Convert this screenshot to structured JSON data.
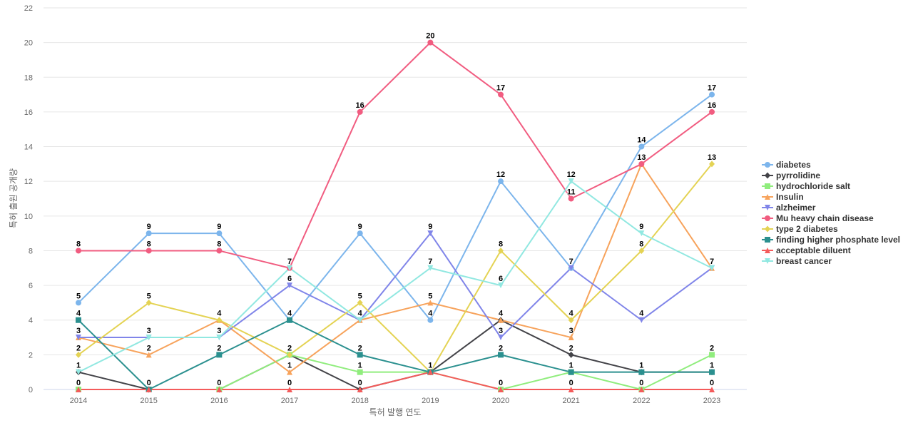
{
  "chart_data": {
    "type": "line",
    "title": "",
    "xlabel": "특허 발행 연도",
    "ylabel": "특허 출원 공개량",
    "x": [
      "2014",
      "2015",
      "2016",
      "2017",
      "2018",
      "2019",
      "2020",
      "2021",
      "2022",
      "2023"
    ],
    "ylim": [
      0,
      22
    ],
    "yticks": [
      0,
      2,
      4,
      6,
      8,
      10,
      12,
      14,
      16,
      18,
      20,
      22
    ],
    "grid": true,
    "legend_position": "right",
    "series": [
      {
        "name": "diabetes",
        "color": "#7cb5ec",
        "marker": "circle",
        "values": [
          5,
          9,
          9,
          4,
          9,
          4,
          12,
          7,
          14,
          17
        ]
      },
      {
        "name": "pyrrolidine",
        "color": "#434348",
        "marker": "diamond",
        "values": [
          1,
          0,
          0,
          2,
          0,
          1,
          4,
          2,
          1,
          1
        ]
      },
      {
        "name": "hydrochloride salt",
        "color": "#90ed7d",
        "marker": "square",
        "values": [
          0,
          0,
          0,
          2,
          1,
          1,
          0,
          1,
          0,
          2
        ]
      },
      {
        "name": "Insulin",
        "color": "#f7a35c",
        "marker": "triangle",
        "values": [
          3,
          2,
          4,
          1,
          4,
          5,
          4,
          3,
          13,
          7
        ]
      },
      {
        "name": "alzheimer",
        "color": "#8085e9",
        "marker": "triangle-down",
        "values": [
          3,
          3,
          3,
          6,
          4,
          9,
          3,
          7,
          4,
          7
        ]
      },
      {
        "name": "Mu heavy chain disease",
        "color": "#f15c80",
        "marker": "circle",
        "values": [
          8,
          8,
          8,
          7,
          16,
          20,
          17,
          11,
          13,
          16
        ]
      },
      {
        "name": "type 2 diabetes",
        "color": "#e4d354",
        "marker": "diamond",
        "values": [
          2,
          5,
          4,
          2,
          5,
          1,
          8,
          4,
          8,
          13
        ]
      },
      {
        "name": "finding higher phosphate level",
        "color": "#2b908f",
        "marker": "square",
        "values": [
          4,
          0,
          2,
          4,
          2,
          1,
          2,
          1,
          1,
          1
        ]
      },
      {
        "name": "acceptable diluent",
        "color": "#f45b5b",
        "marker": "triangle",
        "values": [
          0,
          0,
          0,
          0,
          0,
          1,
          0,
          0,
          0,
          0
        ]
      },
      {
        "name": "breast cancer",
        "color": "#91e8e1",
        "marker": "triangle-down",
        "values": [
          1,
          3,
          3,
          7,
          4,
          7,
          6,
          12,
          9,
          7
        ]
      }
    ],
    "data_labels": [
      {
        "x": "2014",
        "values": [
          5,
          4,
          3,
          8,
          2,
          1,
          0
        ]
      },
      {
        "x": "2015",
        "values": [
          9,
          8,
          5,
          3,
          2,
          0
        ]
      },
      {
        "x": "2016",
        "values": [
          9,
          8,
          4,
          3,
          2,
          0
        ]
      },
      {
        "x": "2017",
        "values": [
          7,
          6,
          4,
          2,
          1,
          0
        ]
      },
      {
        "x": "2018",
        "values": [
          16,
          9,
          5,
          4,
          2,
          1,
          0
        ]
      },
      {
        "x": "2019",
        "values": [
          20,
          9,
          7,
          5,
          4,
          1
        ]
      },
      {
        "x": "2020",
        "values": [
          17,
          12,
          8,
          6,
          4,
          3,
          2,
          0
        ]
      },
      {
        "x": "2021",
        "values": [
          12,
          11,
          7,
          4,
          3,
          2,
          1,
          0
        ]
      },
      {
        "x": "2022",
        "values": [
          14,
          13,
          9,
          8,
          4,
          1,
          0
        ]
      },
      {
        "x": "2023",
        "values": [
          17,
          16,
          13,
          7,
          2,
          1,
          0
        ]
      }
    ]
  }
}
